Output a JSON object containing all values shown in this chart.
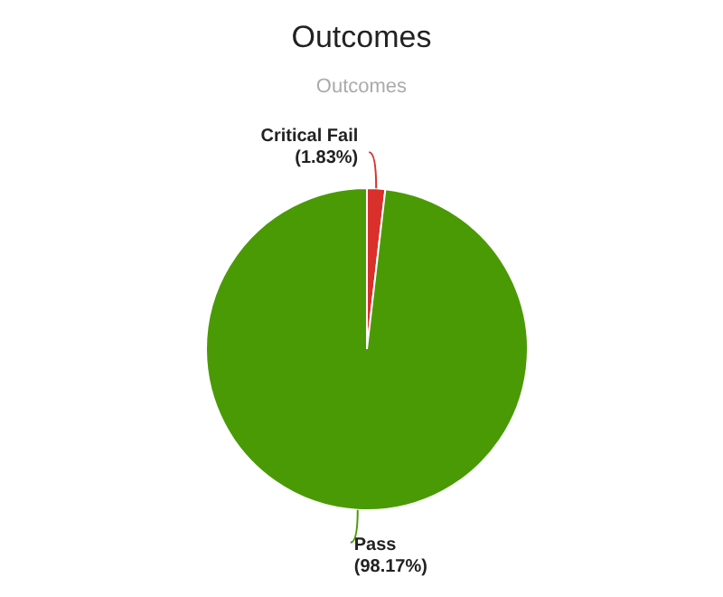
{
  "chart_data": {
    "type": "pie",
    "title": "Outcomes",
    "subtitle": "Outcomes",
    "categories": [
      "Critical Fail",
      "Pass"
    ],
    "values": [
      1.83,
      98.17
    ],
    "colors": [
      "#d9302c",
      "#4a9a06"
    ],
    "value_labels": [
      "(1.83%)",
      "(98.17%)"
    ]
  }
}
